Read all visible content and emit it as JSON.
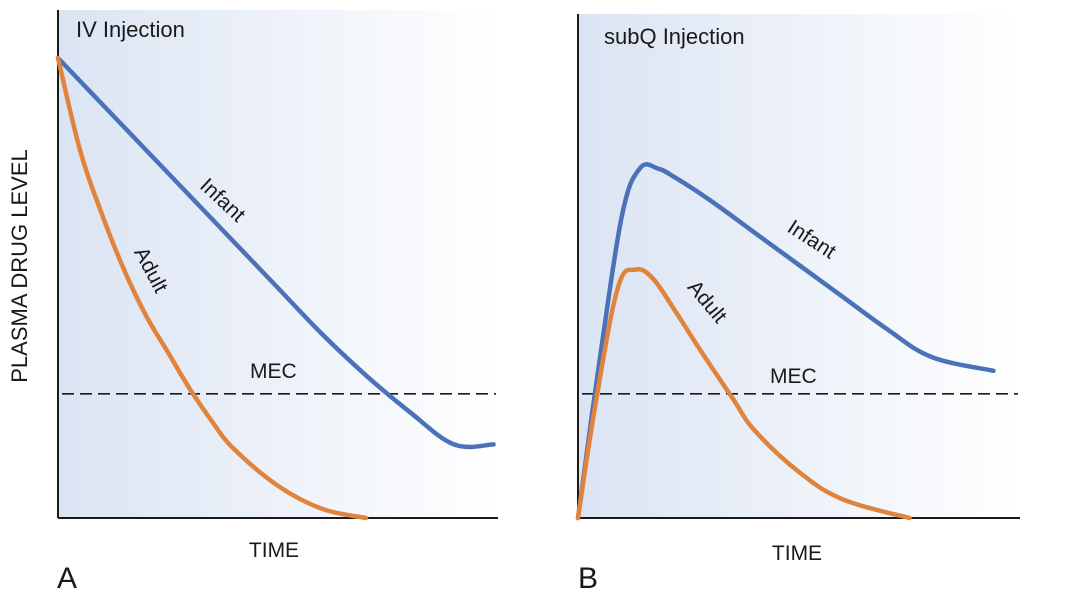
{
  "ylabel": "PLASMA DRUG LEVEL",
  "colors": {
    "infant": "#4a72b8",
    "adult": "#e0833d",
    "axis": "#1a1a1a",
    "bg_start": "#dbe4f3",
    "bg_end": "#ffffff"
  },
  "chart_data": [
    {
      "type": "line",
      "panel": "A",
      "title": "IV Injection",
      "xlabel": "TIME",
      "ylabel": "PLASMA DRUG LEVEL",
      "xlim": [
        0,
        10
      ],
      "ylim": [
        0,
        10
      ],
      "threshold": {
        "label": "MEC",
        "value": 2.7
      },
      "series": [
        {
          "name": "Infant",
          "x": [
            0,
            1,
            2,
            3,
            4,
            5,
            6,
            7,
            8,
            9,
            9.9
          ],
          "y": [
            10.0,
            9.0,
            8.0,
            7.0,
            6.0,
            5.0,
            4.0,
            3.1,
            2.3,
            1.6,
            1.6
          ]
        },
        {
          "name": "Adult",
          "x": [
            0,
            0.5,
            1,
            1.5,
            2,
            2.5,
            3,
            3.5,
            4,
            5,
            6,
            7.0
          ],
          "y": [
            10.0,
            8.0,
            6.6,
            5.4,
            4.4,
            3.6,
            2.8,
            2.1,
            1.5,
            0.7,
            0.2,
            0.0
          ]
        }
      ]
    },
    {
      "type": "line",
      "panel": "B",
      "title": "subQ Injection",
      "xlabel": "TIME",
      "ylabel": "",
      "xlim": [
        0,
        10
      ],
      "ylim": [
        0,
        10
      ],
      "threshold": {
        "label": "MEC",
        "value": 2.7
      },
      "series": [
        {
          "name": "Infant",
          "x": [
            0,
            0.5,
            1,
            1.4,
            1.8,
            2.2,
            3,
            4,
            5,
            6,
            7,
            8,
            9.4
          ],
          "y": [
            0.0,
            3.5,
            6.6,
            7.6,
            7.6,
            7.4,
            6.9,
            6.2,
            5.5,
            4.8,
            4.1,
            3.5,
            3.2
          ]
        },
        {
          "name": "Adult",
          "x": [
            0,
            0.4,
            0.9,
            1.3,
            1.7,
            2.2,
            2.8,
            3.5,
            4,
            5,
            6,
            7.5
          ],
          "y": [
            0.0,
            2.5,
            5.0,
            5.4,
            5.2,
            4.5,
            3.6,
            2.6,
            1.9,
            1.0,
            0.4,
            0.0
          ]
        }
      ]
    }
  ]
}
